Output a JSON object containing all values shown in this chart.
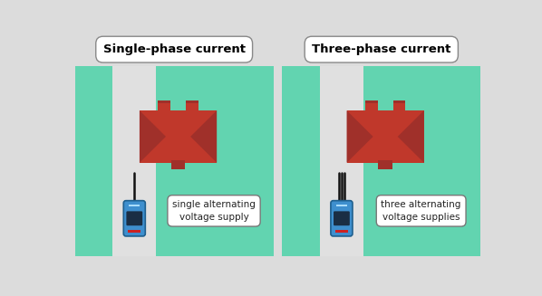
{
  "bg_color": "#dcdcdc",
  "panel_color": "#62d4b0",
  "driveway_color": "#e0e0e0",
  "roof_main": "#c0382b",
  "roof_shadow": "#a0302a",
  "car_body": "#3e8fce",
  "car_dark": "#1e5f8e",
  "car_roof": "#1a2e44",
  "car_tail": "#cc2222",
  "wire_color": "#111111",
  "label_bg": "#ffffff",
  "label_border": "#777777",
  "text_color": "#222222",
  "title_left": "Single-phase current",
  "title_right": "Three-phase current",
  "label_left": "single alternating\nvoltage supply",
  "label_right": "three alternating\nvoltage supplies"
}
